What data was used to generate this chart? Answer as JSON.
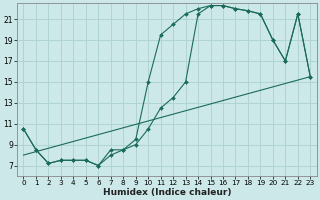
{
  "xlabel": "Humidex (Indice chaleur)",
  "bg_color": "#cce8e8",
  "grid_color": "#b0d4d4",
  "line_color": "#1a6b5a",
  "xlim": [
    -0.5,
    23.5
  ],
  "ylim": [
    6,
    22.5
  ],
  "xticks": [
    0,
    1,
    2,
    3,
    4,
    5,
    6,
    7,
    8,
    9,
    10,
    11,
    12,
    13,
    14,
    15,
    16,
    17,
    18,
    19,
    20,
    21,
    22,
    23
  ],
  "yticks": [
    7,
    9,
    11,
    13,
    15,
    17,
    19,
    21
  ],
  "line1_x": [
    0,
    1,
    2,
    3,
    4,
    5,
    6,
    7,
    8,
    9,
    10,
    11,
    12,
    13,
    14,
    15,
    16,
    17,
    18,
    19,
    20,
    21,
    22,
    23
  ],
  "line1_y": [
    10.5,
    8.5,
    7.2,
    7.5,
    7.5,
    7.5,
    7.0,
    8.0,
    8.5,
    9.0,
    10.5,
    12.5,
    13.5,
    15.0,
    21.5,
    22.3,
    22.3,
    22.0,
    21.8,
    21.5,
    19.0,
    17.0,
    21.5,
    15.5
  ],
  "line2_x": [
    0,
    1,
    2,
    3,
    4,
    5,
    6,
    7,
    8,
    9,
    10,
    11,
    12,
    13,
    14,
    15,
    16,
    17,
    18,
    19,
    20,
    21,
    22,
    23
  ],
  "line2_y": [
    10.5,
    8.5,
    7.2,
    7.5,
    7.5,
    7.5,
    7.0,
    8.5,
    8.5,
    9.5,
    15.0,
    19.5,
    20.5,
    21.5,
    22.0,
    22.3,
    22.3,
    22.0,
    21.8,
    21.5,
    19.0,
    17.0,
    21.5,
    15.5
  ],
  "line3_x": [
    0,
    23
  ],
  "line3_y": [
    8.0,
    15.5
  ]
}
